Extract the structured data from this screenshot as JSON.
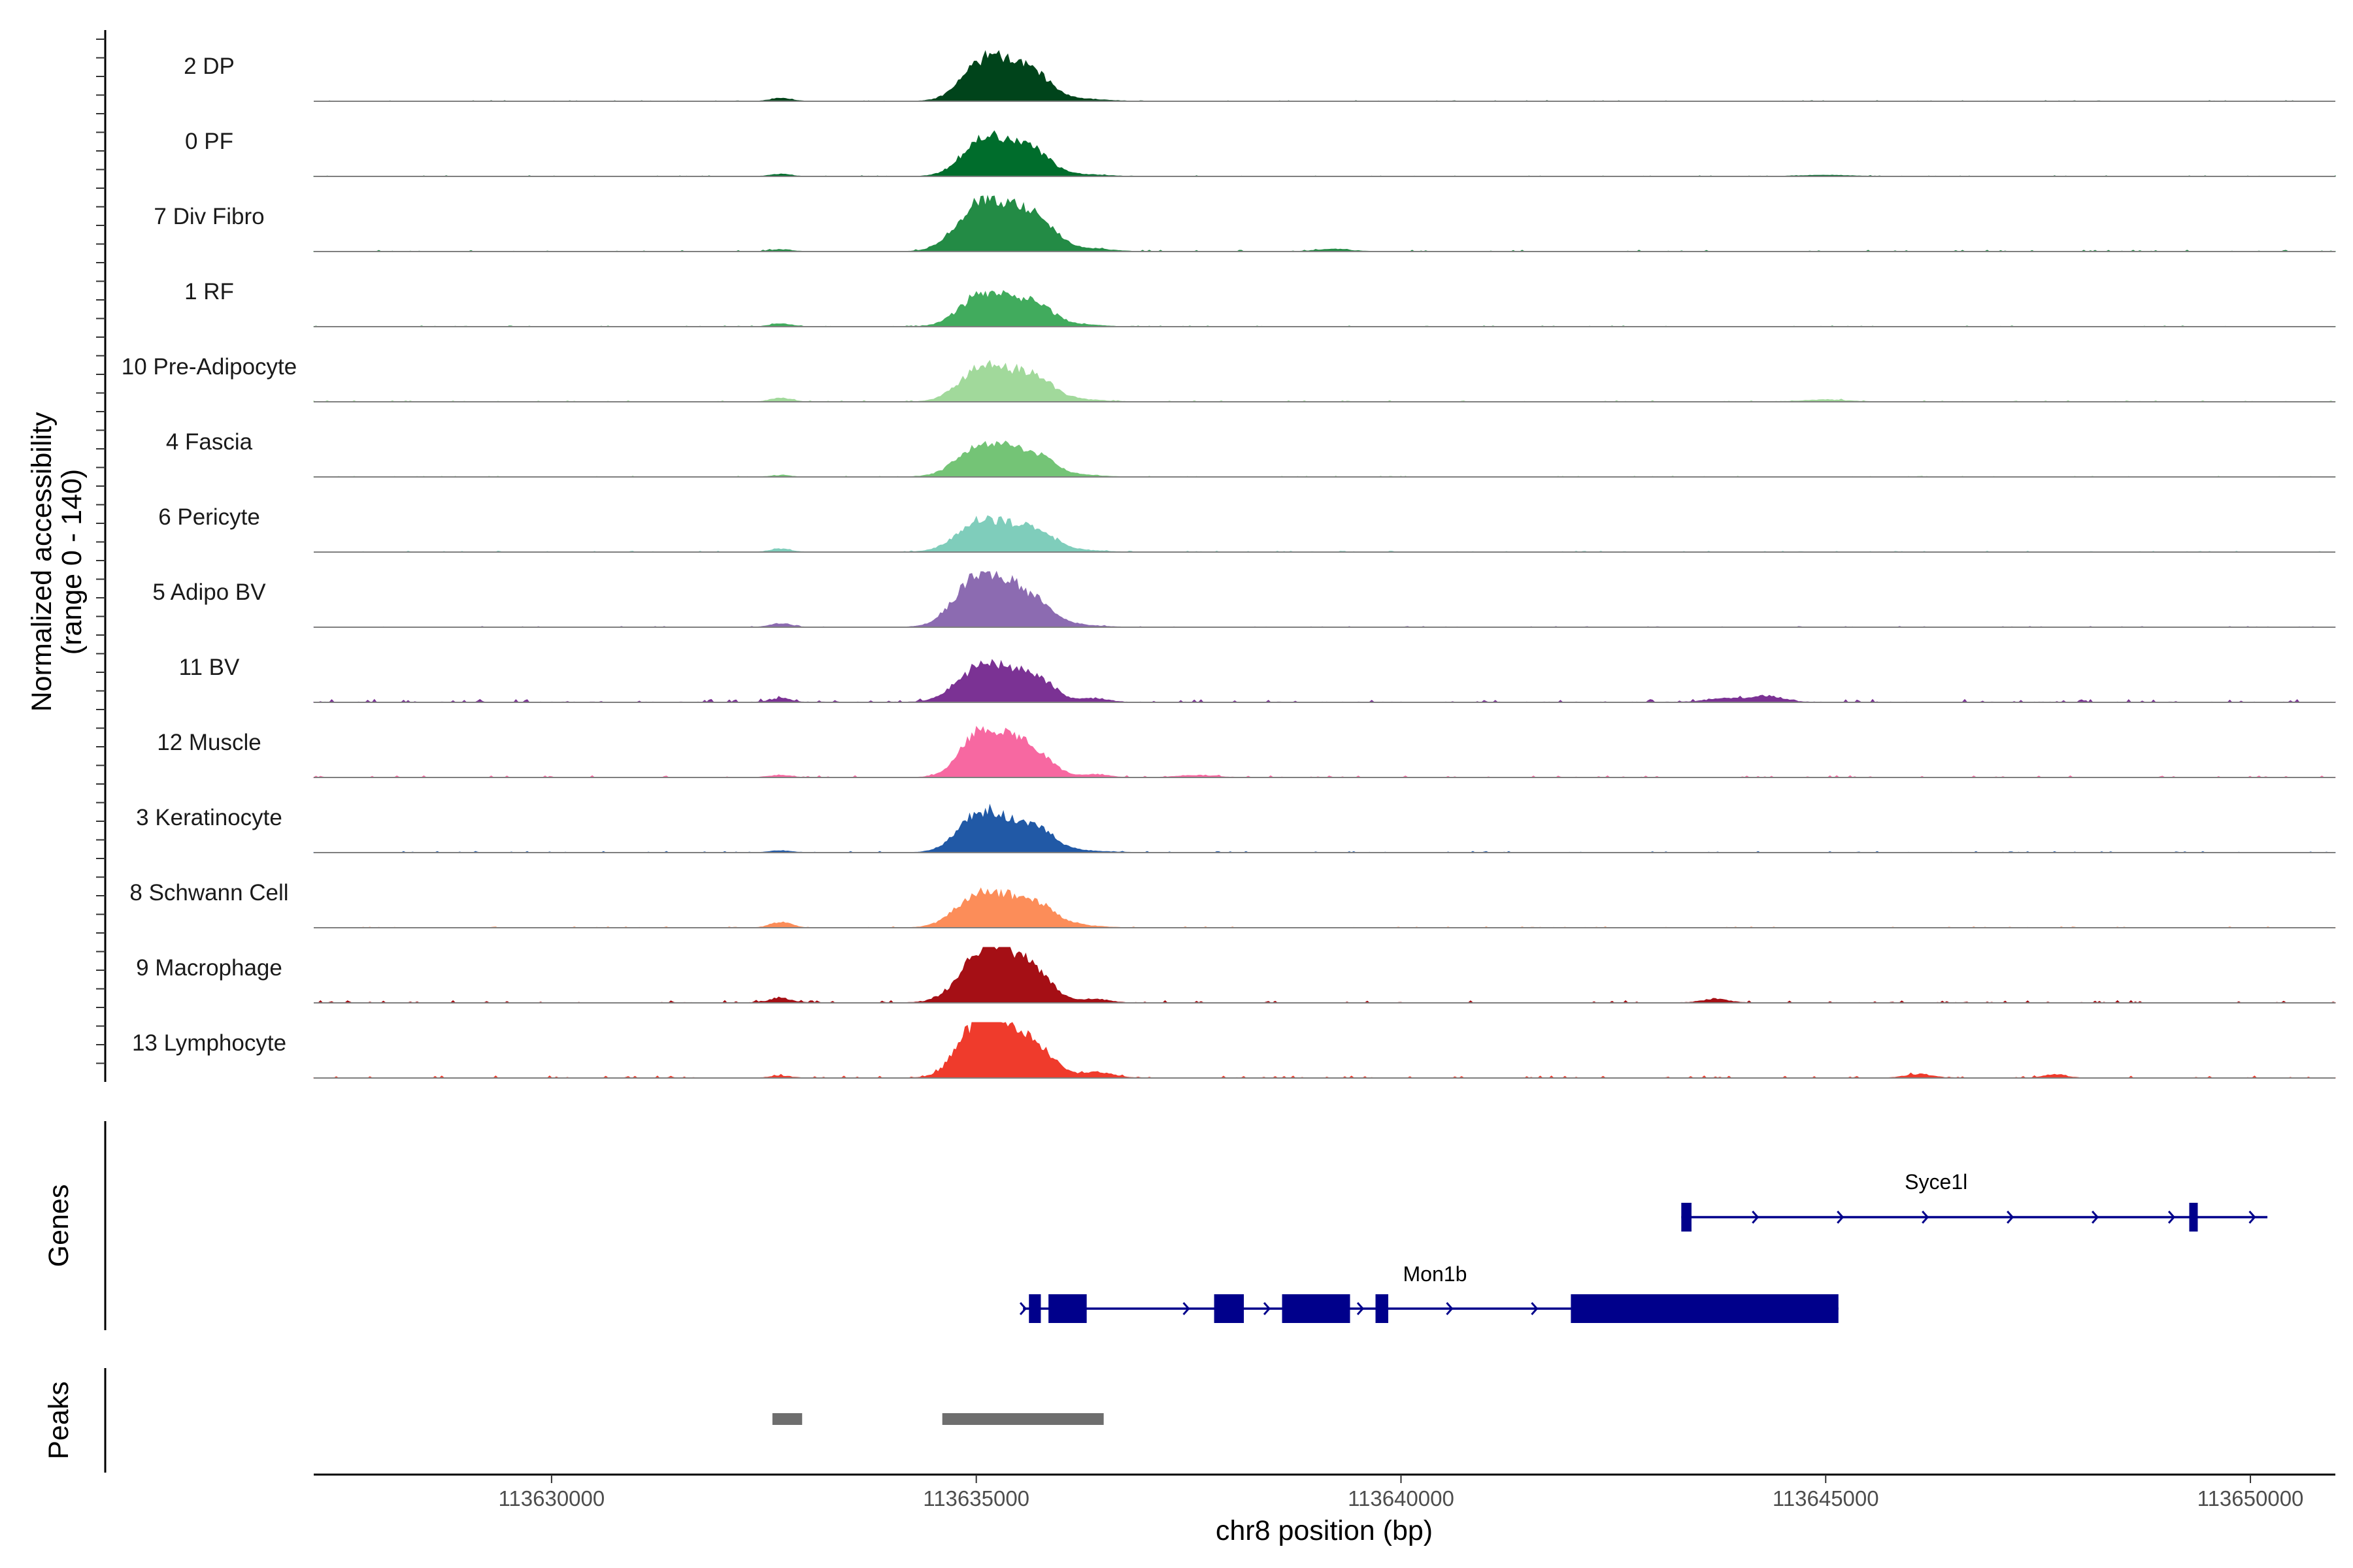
{
  "chart_data": {
    "type": "area",
    "title": "",
    "ylabel_line1": "Normalized accessibility",
    "ylabel_line2": "(range 0 - 140)",
    "ylim": [
      0,
      140
    ],
    "xlabel": "chr8 position (bp)",
    "xlim": [
      113627200,
      113651000
    ],
    "x_ticks": [
      113630000,
      113635000,
      113640000,
      113645000,
      113650000
    ],
    "x_tick_labels": [
      "113630000",
      "113635000",
      "113640000",
      "113645000",
      "113650000"
    ],
    "tracks": [
      {
        "name": "2 DP",
        "color": "#00441b",
        "peaks": [
          [
            113635300,
            95,
            300
          ],
          [
            113635000,
            50,
            220
          ],
          [
            113635700,
            45,
            200
          ],
          [
            113632700,
            8,
            120
          ],
          [
            113636200,
            6,
            300
          ]
        ],
        "background": 0.6
      },
      {
        "name": "0 PF",
        "color": "#006d2c",
        "peaks": [
          [
            113635300,
            85,
            300
          ],
          [
            113635000,
            45,
            220
          ],
          [
            113635700,
            40,
            200
          ],
          [
            113632700,
            6,
            120
          ],
          [
            113636200,
            5,
            300
          ],
          [
            113645000,
            3,
            300
          ]
        ],
        "background": 0.6
      },
      {
        "name": "7 Div Fibro",
        "color": "#238b45",
        "peaks": [
          [
            113635300,
            115,
            320
          ],
          [
            113634950,
            60,
            240
          ],
          [
            113635750,
            55,
            200
          ],
          [
            113636300,
            8,
            250
          ],
          [
            113639200,
            6,
            200
          ],
          [
            113632700,
            5,
            120
          ]
        ],
        "background": 1.2
      },
      {
        "name": "1 RF",
        "color": "#41ab5d",
        "peaks": [
          [
            113635300,
            75,
            300
          ],
          [
            113634950,
            40,
            220
          ],
          [
            113635750,
            35,
            200
          ],
          [
            113632700,
            8,
            120
          ],
          [
            113636200,
            5,
            250
          ]
        ],
        "background": 0.7
      },
      {
        "name": "10 Pre-Adipocyte",
        "color": "#a1d99b",
        "peaks": [
          [
            113635300,
            80,
            300
          ],
          [
            113634950,
            45,
            220
          ],
          [
            113635750,
            40,
            200
          ],
          [
            113632700,
            10,
            120
          ],
          [
            113636200,
            6,
            250
          ],
          [
            113645000,
            5,
            250
          ]
        ],
        "background": 1.0
      },
      {
        "name": "4 Fascia",
        "color": "#74c476",
        "peaks": [
          [
            113635300,
            70,
            320
          ],
          [
            113634950,
            40,
            240
          ],
          [
            113635750,
            35,
            200
          ],
          [
            113632700,
            4,
            120
          ],
          [
            113636200,
            5,
            250
          ]
        ],
        "background": 0.6
      },
      {
        "name": "6 Pericyte",
        "color": "#7fcdbb",
        "peaks": [
          [
            113635300,
            68,
            320
          ],
          [
            113634950,
            40,
            240
          ],
          [
            113635750,
            35,
            200
          ],
          [
            113632700,
            8,
            120
          ],
          [
            113636200,
            5,
            250
          ]
        ],
        "background": 0.8
      },
      {
        "name": "5 Adipo BV",
        "color": "#8c6bb1",
        "peaks": [
          [
            113635250,
            110,
            330
          ],
          [
            113634950,
            60,
            240
          ],
          [
            113635700,
            40,
            220
          ],
          [
            113632700,
            10,
            120
          ],
          [
            113636200,
            5,
            250
          ]
        ],
        "background": 0.7
      },
      {
        "name": "11 BV",
        "color": "#7b3294",
        "peaks": [
          [
            113635300,
            80,
            320
          ],
          [
            113634950,
            45,
            240
          ],
          [
            113635750,
            40,
            200
          ],
          [
            113644300,
            16,
            200
          ],
          [
            113643800,
            10,
            200
          ],
          [
            113632700,
            10,
            120
          ],
          [
            113636400,
            10,
            150
          ]
        ],
        "background": 2.5
      },
      {
        "name": "12 Muscle",
        "color": "#f768a1",
        "peaks": [
          [
            113635300,
            110,
            280
          ],
          [
            113634950,
            60,
            200
          ],
          [
            113635750,
            40,
            200
          ],
          [
            113636400,
            8,
            150
          ],
          [
            113637600,
            6,
            200
          ],
          [
            113632700,
            6,
            120
          ]
        ],
        "background": 1.5
      },
      {
        "name": "3 Keratinocyte",
        "color": "#2159a6",
        "peaks": [
          [
            113635300,
            85,
            300
          ],
          [
            113634950,
            55,
            220
          ],
          [
            113635750,
            40,
            200
          ],
          [
            113632700,
            5,
            120
          ],
          [
            113636200,
            5,
            300
          ]
        ],
        "background": 1.0
      },
      {
        "name": "8 Schwann Cell",
        "color": "#fc8d59",
        "peaks": [
          [
            113635300,
            75,
            320
          ],
          [
            113634950,
            45,
            240
          ],
          [
            113635750,
            40,
            200
          ],
          [
            113632700,
            15,
            120
          ],
          [
            113636200,
            6,
            250
          ]
        ],
        "background": 0.8
      },
      {
        "name": "9 Macrophage",
        "color": "#a50f15",
        "peaks": [
          [
            113635300,
            140,
            250
          ],
          [
            113634950,
            70,
            240
          ],
          [
            113635750,
            55,
            200
          ],
          [
            113632700,
            12,
            130
          ],
          [
            113636400,
            10,
            150
          ],
          [
            113643700,
            10,
            150
          ]
        ],
        "background": 2.0
      },
      {
        "name": "13 Lymphocyte",
        "color": "#ef3b2c",
        "peaks": [
          [
            113635300,
            140,
            250
          ],
          [
            113634950,
            95,
            220
          ],
          [
            113635750,
            60,
            200
          ],
          [
            113636400,
            15,
            200
          ],
          [
            113646100,
            10,
            150
          ],
          [
            113647700,
            10,
            120
          ],
          [
            113632700,
            5,
            120
          ]
        ],
        "background": 1.8
      }
    ],
    "genes_label": "Genes",
    "genes": [
      {
        "name": "Syce1l",
        "strand": "+",
        "start": 113643300,
        "end": 113650200,
        "exons": [
          [
            113643300,
            113643420
          ],
          [
            113649280,
            113649380
          ]
        ],
        "arrows": [
          113644200,
          113645200,
          113646200,
          113647200,
          113648200,
          113649100,
          113650050
        ]
      },
      {
        "name": "Mon1b",
        "strand": "+",
        "start": 113635550,
        "end": 113645150,
        "exons": [
          [
            113635620,
            113635760
          ],
          [
            113635850,
            113636300
          ],
          [
            113637800,
            113638150
          ],
          [
            113638600,
            113639400
          ],
          [
            113639700,
            113639850
          ],
          [
            113642000,
            113645150
          ]
        ],
        "arrows": [
          113635580,
          113637500,
          113638450,
          113639550,
          113640600,
          113641600
        ]
      }
    ],
    "peaks_label": "Peaks",
    "peaks": [
      [
        113632600,
        113632950
      ],
      [
        113634600,
        113636500
      ]
    ]
  }
}
